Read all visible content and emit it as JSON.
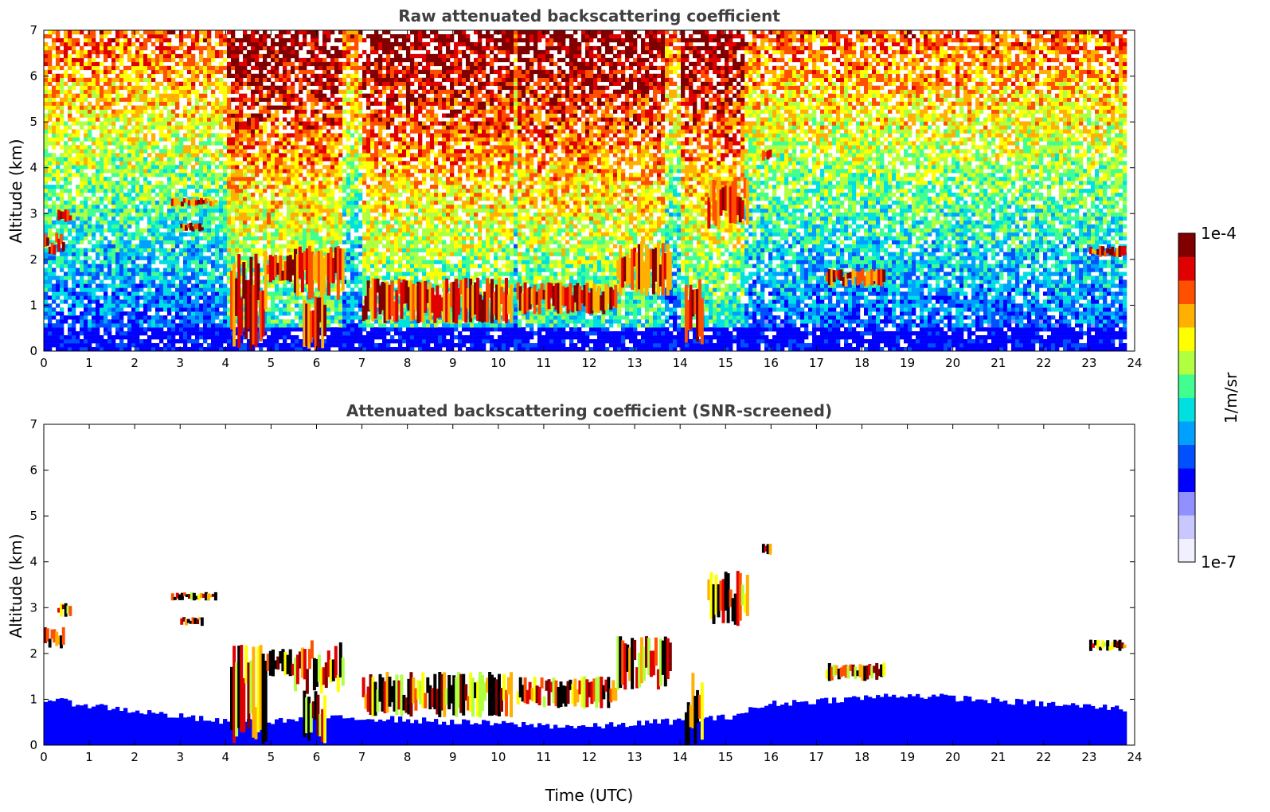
{
  "chart_data": [
    {
      "type": "heatmap",
      "title": "Raw attenuated backscattering coefficient",
      "xlabel": "",
      "ylabel": "Altitude (km)",
      "xlim": [
        0,
        24
      ],
      "ylim": [
        0,
        7
      ],
      "x_ticks": [
        0,
        1,
        2,
        3,
        4,
        5,
        6,
        7,
        8,
        9,
        10,
        11,
        12,
        13,
        14,
        15,
        16,
        17,
        18,
        19,
        20,
        21,
        22,
        23,
        24
      ],
      "y_ticks": [
        0,
        1,
        2,
        3,
        4,
        5,
        6,
        7
      ],
      "noise_band_hours": [
        [
          4.0,
          6.6
        ],
        [
          7.0,
          10.3
        ],
        [
          10.4,
          13.7
        ],
        [
          14.0,
          15.4
        ]
      ],
      "cloud_layers": [
        {
          "time_start": 0.0,
          "time_end": 0.45,
          "alt_start": 2.1,
          "alt_end": 2.6
        },
        {
          "time_start": 0.3,
          "time_end": 0.6,
          "alt_start": 2.8,
          "alt_end": 3.1
        },
        {
          "time_start": 2.8,
          "time_end": 3.8,
          "alt_start": 3.15,
          "alt_end": 3.35
        },
        {
          "time_start": 3.0,
          "time_end": 3.5,
          "alt_start": 2.6,
          "alt_end": 2.8
        },
        {
          "time_start": 4.1,
          "time_end": 4.9,
          "alt_start": 0.0,
          "alt_end": 2.2
        },
        {
          "time_start": 4.9,
          "time_end": 5.5,
          "alt_start": 1.5,
          "alt_end": 2.1
        },
        {
          "time_start": 5.5,
          "time_end": 6.6,
          "alt_start": 1.1,
          "alt_end": 2.3
        },
        {
          "time_start": 5.7,
          "time_end": 6.2,
          "alt_start": 0.0,
          "alt_end": 1.2
        },
        {
          "time_start": 7.0,
          "time_end": 10.3,
          "alt_start": 0.6,
          "alt_end": 1.6
        },
        {
          "time_start": 10.4,
          "time_end": 12.6,
          "alt_start": 0.8,
          "alt_end": 1.5
        },
        {
          "time_start": 12.6,
          "time_end": 13.8,
          "alt_start": 1.2,
          "alt_end": 2.4
        },
        {
          "time_start": 14.1,
          "time_end": 14.5,
          "alt_start": 0.0,
          "alt_end": 1.6
        },
        {
          "time_start": 14.6,
          "time_end": 15.5,
          "alt_start": 2.6,
          "alt_end": 3.8
        },
        {
          "time_start": 15.8,
          "time_end": 16.0,
          "alt_start": 4.15,
          "alt_end": 4.4
        },
        {
          "time_start": 17.2,
          "time_end": 18.5,
          "alt_start": 1.4,
          "alt_end": 1.8
        },
        {
          "time_start": 23.0,
          "time_end": 23.8,
          "alt_start": 2.05,
          "alt_end": 2.3
        }
      ]
    },
    {
      "type": "heatmap",
      "title": "Attenuated backscattering coefficient (SNR-screened)",
      "xlabel": "Time (UTC)",
      "ylabel": "Altitude (km)",
      "xlim": [
        0,
        24
      ],
      "ylim": [
        0,
        7
      ],
      "x_ticks": [
        0,
        1,
        2,
        3,
        4,
        5,
        6,
        7,
        8,
        9,
        10,
        11,
        12,
        13,
        14,
        15,
        16,
        17,
        18,
        19,
        20,
        21,
        22,
        23,
        24
      ],
      "y_ticks": [
        0,
        1,
        2,
        3,
        4,
        5,
        6,
        7
      ],
      "boundary_layer_top_km": [
        [
          0,
          1.0
        ],
        [
          4,
          0.5
        ],
        [
          7,
          0.6
        ],
        [
          9,
          0.5
        ],
        [
          12,
          0.4
        ],
        [
          15,
          0.6
        ],
        [
          16,
          0.9
        ],
        [
          19,
          1.1
        ],
        [
          22,
          0.9
        ],
        [
          23.8,
          0.8
        ]
      ]
    }
  ],
  "colorbar": {
    "label": "1/m/sr",
    "max_label": "1e-4",
    "min_label": "1e-7",
    "colors": [
      "#f0f0ff",
      "#c8c8ff",
      "#9090ff",
      "#0000ff",
      "#0050ff",
      "#00a0ff",
      "#00e0e0",
      "#40ff90",
      "#b0ff40",
      "#ffff00",
      "#ffb000",
      "#ff5000",
      "#e00000",
      "#800000"
    ]
  }
}
